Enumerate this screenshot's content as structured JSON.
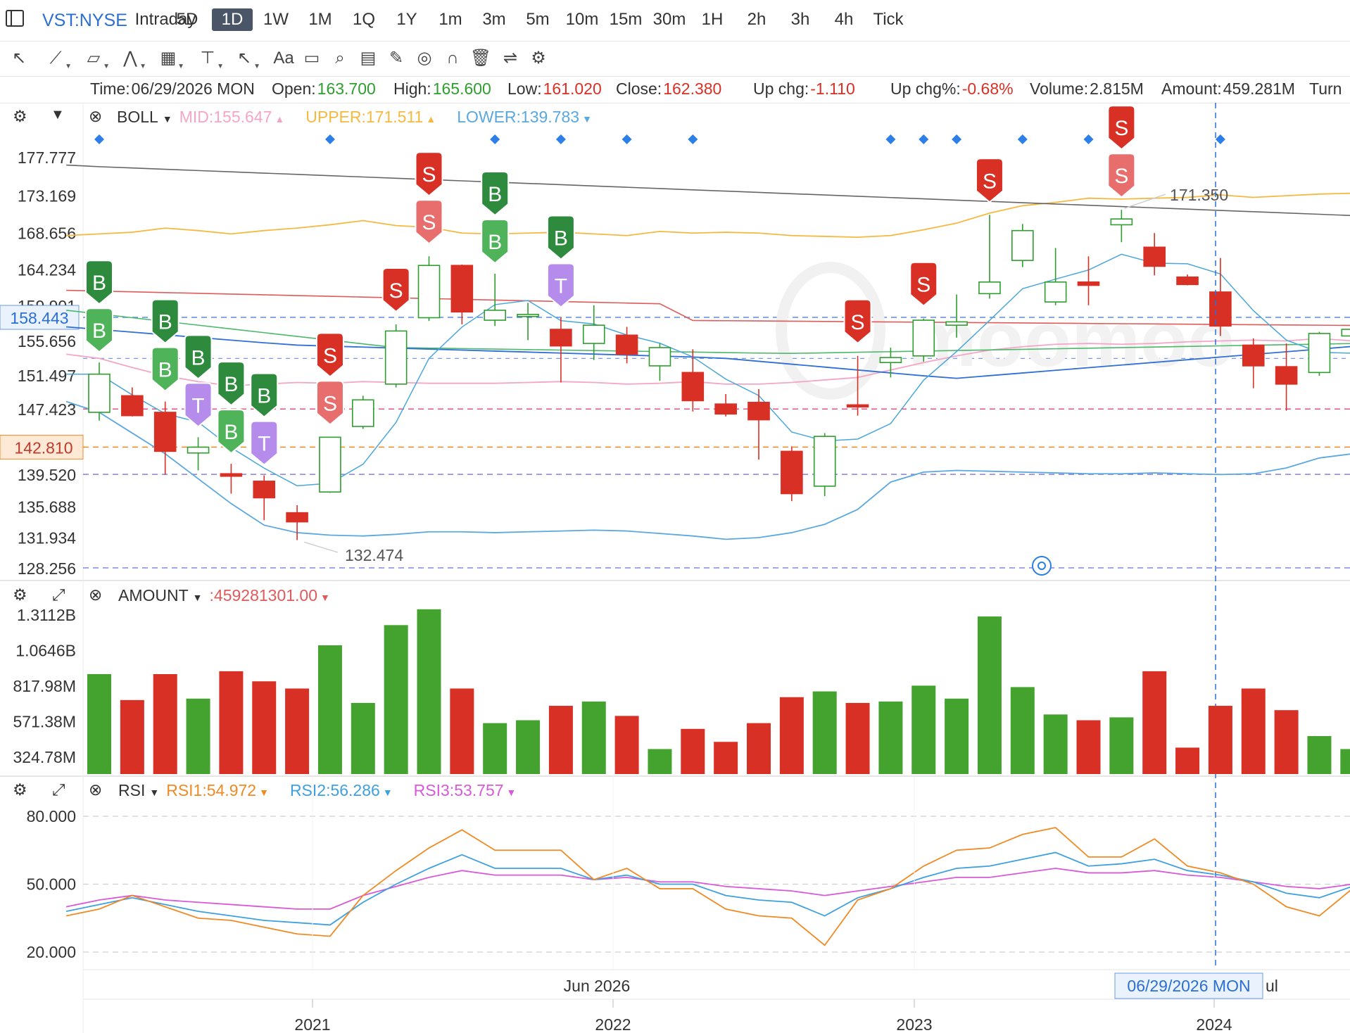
{
  "header": {
    "symbol": "VST:NYSE",
    "periods": [
      "Intraday",
      "5D",
      "1D",
      "1W",
      "1M",
      "1Q",
      "1Y",
      "1m",
      "3m",
      "5m",
      "10m",
      "15m",
      "30m",
      "1H",
      "2h",
      "3h",
      "4h",
      "Tick"
    ],
    "active_period": "1D"
  },
  "toolbar": {
    "tools": [
      {
        "icon": "cursor-icon",
        "glyph": "↖",
        "caret": false
      },
      {
        "icon": "trend-line-icon",
        "glyph": "⟋",
        "caret": true
      },
      {
        "icon": "channel-icon",
        "glyph": "▱",
        "caret": true
      },
      {
        "icon": "wave-icon",
        "glyph": "⋀",
        "caret": true
      },
      {
        "icon": "pattern-icon",
        "glyph": "▦",
        "caret": true
      },
      {
        "icon": "vertical-line-icon",
        "glyph": "⊤",
        "caret": true
      },
      {
        "icon": "arrow-icon",
        "glyph": "↖",
        "caret": true
      },
      {
        "icon": "text-icon",
        "glyph": "Aa",
        "caret": false
      },
      {
        "icon": "comment-icon",
        "glyph": "▭",
        "caret": false
      },
      {
        "icon": "zoom-icon",
        "glyph": "⌕",
        "caret": false
      },
      {
        "icon": "measure-icon",
        "glyph": "▤",
        "caret": false
      },
      {
        "icon": "pen-icon",
        "glyph": "✎",
        "caret": false
      },
      {
        "icon": "hide-icon",
        "glyph": "◎",
        "caret": false
      },
      {
        "icon": "magnet-icon",
        "glyph": "∩",
        "caret": false
      },
      {
        "icon": "trash-icon",
        "glyph": "🗑",
        "caret": false
      },
      {
        "icon": "sync-icon",
        "glyph": "⇌",
        "caret": false
      },
      {
        "icon": "settings-icon",
        "glyph": "⚙",
        "caret": false
      }
    ]
  },
  "info_bar": [
    {
      "label": "Time:",
      "value": "06/29/2026 MON",
      "color": "#333333"
    },
    {
      "label": "Open:",
      "value": "163.700",
      "color": "#2e9e2e"
    },
    {
      "label": "High:",
      "value": "165.600",
      "color": "#2e9e2e"
    },
    {
      "label": "Low:",
      "value": "161.020",
      "color": "#d93025"
    },
    {
      "label": "Close:",
      "value": "162.380",
      "color": "#d93025"
    },
    {
      "label": "Up chg:",
      "value": "-1.110",
      "color": "#d93025"
    },
    {
      "label": "Up chg%:",
      "value": "-0.68%",
      "color": "#d93025"
    },
    {
      "label": "Volume:",
      "value": "2.815M",
      "color": "#333333"
    },
    {
      "label": "Amount:",
      "value": "459.281M",
      "color": "#333333"
    },
    {
      "label": "Turn",
      "value": "",
      "color": "#333333"
    }
  ],
  "panels": {
    "boll": {
      "name": "BOLL",
      "values": [
        {
          "text": "MID:155.647",
          "color": "#f4a6c6"
        },
        {
          "text": "UPPER:171.511",
          "color": "#f5b942"
        },
        {
          "text": "LOWER:139.783",
          "color": "#5aa8e0"
        }
      ]
    },
    "amount": {
      "name": "AMOUNT",
      "values": [
        {
          "text": ":459281301.00",
          "color": "#e05a5a"
        }
      ]
    },
    "rsi": {
      "name": "RSI",
      "values": [
        {
          "text": "RSI1:54.972",
          "color": "#f08a24"
        },
        {
          "text": "RSI2:56.286",
          "color": "#3ea0e0"
        },
        {
          "text": "RSI3:53.757",
          "color": "#d85ad8"
        }
      ]
    }
  },
  "price_axis": {
    "ticks": [
      "177.777",
      "173.169",
      "168.656",
      "164.234",
      "159.901",
      "155.656",
      "151.497",
      "147.423",
      "139.520",
      "135.688",
      "131.934",
      "128.256"
    ],
    "crosshair_price": "158.443",
    "current_price": "142.810"
  },
  "amount_axis": {
    "ticks": [
      "1.3112B",
      "1.0646B",
      "817.98M",
      "571.38M",
      "324.78M"
    ]
  },
  "rsi_axis": {
    "ticks": [
      "80.000",
      "50.000",
      "20.000"
    ]
  },
  "annotations": {
    "high_label": "171.350",
    "low_label": "132.474"
  },
  "time_axis": {
    "inner_labels": [
      "Jun 2026"
    ],
    "crosshair_label": "06/29/2026 MON",
    "crosshair_after": "ul",
    "year_labels": [
      "2021",
      "2022",
      "2023",
      "2024"
    ]
  },
  "colors": {
    "up": "#2e9e2e",
    "down": "#d93025",
    "accent": "#2b6fd6"
  },
  "chart_data": {
    "type": "candlestick",
    "candles": [
      {
        "o": 147,
        "h": 153,
        "l": 146,
        "c": 151.6,
        "amt": 0.9
      },
      {
        "o": 149,
        "h": 150,
        "l": 146.5,
        "c": 146.6,
        "amt": 0.72
      },
      {
        "o": 147,
        "h": 148.3,
        "l": 139.5,
        "c": 142.3,
        "amt": 0.9
      },
      {
        "o": 142.1,
        "h": 144,
        "l": 140,
        "c": 142.8,
        "amt": 0.73
      },
      {
        "o": 139.6,
        "h": 140.8,
        "l": 137.2,
        "c": 139.3,
        "amt": 0.92
      },
      {
        "o": 138.7,
        "h": 139.4,
        "l": 134,
        "c": 136.7,
        "amt": 0.85
      },
      {
        "o": 134.9,
        "h": 135.8,
        "l": 131.6,
        "c": 133.8,
        "amt": 0.8
      },
      {
        "o": 137.4,
        "h": 144,
        "l": 137.3,
        "c": 144,
        "amt": 1.1
      },
      {
        "o": 145.3,
        "h": 149,
        "l": 145,
        "c": 148.5,
        "amt": 0.7
      },
      {
        "o": 150.4,
        "h": 157.6,
        "l": 150,
        "c": 156.8,
        "amt": 1.24
      },
      {
        "o": 158.4,
        "h": 165.8,
        "l": 158,
        "c": 164.7,
        "amt": 1.35
      },
      {
        "o": 164.7,
        "h": 164.8,
        "l": 157.6,
        "c": 159.1,
        "amt": 0.8
      },
      {
        "o": 158.1,
        "h": 163.7,
        "l": 157.4,
        "c": 159.3,
        "amt": 0.56
      },
      {
        "o": 158.8,
        "h": 160.2,
        "l": 155.7,
        "c": 158.8,
        "amt": 0.58
      },
      {
        "o": 157,
        "h": 158.4,
        "l": 150.6,
        "c": 155,
        "amt": 0.68
      },
      {
        "o": 155.3,
        "h": 159.9,
        "l": 153.3,
        "c": 157.5,
        "amt": 0.71
      },
      {
        "o": 156.3,
        "h": 157.3,
        "l": 152.9,
        "c": 154,
        "amt": 0.61
      },
      {
        "o": 152.6,
        "h": 155.3,
        "l": 150.8,
        "c": 154.8,
        "amt": 0.38
      },
      {
        "o": 151.8,
        "h": 154.6,
        "l": 147.1,
        "c": 148.4,
        "amt": 0.52
      },
      {
        "o": 148,
        "h": 149.2,
        "l": 146.5,
        "c": 146.8,
        "amt": 0.43
      },
      {
        "o": 148.2,
        "h": 149.8,
        "l": 141.3,
        "c": 146.1,
        "amt": 0.56
      },
      {
        "o": 142.3,
        "h": 142.9,
        "l": 136.3,
        "c": 137.2,
        "amt": 0.74
      },
      {
        "o": 138.1,
        "h": 144.5,
        "l": 136.9,
        "c": 144.1,
        "amt": 0.78
      },
      {
        "o": 147.9,
        "h": 153.8,
        "l": 146.6,
        "c": 147.7,
        "amt": 0.7
      },
      {
        "o": 153,
        "h": 154.8,
        "l": 151.2,
        "c": 153.6,
        "amt": 0.71
      },
      {
        "o": 153.8,
        "h": 158.3,
        "l": 153.1,
        "c": 158.1,
        "amt": 0.82
      },
      {
        "o": 157.5,
        "h": 161.2,
        "l": 156,
        "c": 157.9,
        "amt": 0.73
      },
      {
        "o": 161.3,
        "h": 170.8,
        "l": 160.7,
        "c": 162.7,
        "amt": 1.3
      },
      {
        "o": 165.3,
        "h": 169.7,
        "l": 164.5,
        "c": 168.9,
        "amt": 0.81
      },
      {
        "o": 160.3,
        "h": 166.8,
        "l": 159.9,
        "c": 162.7,
        "amt": 0.62
      },
      {
        "o": 162.7,
        "h": 165.8,
        "l": 159.9,
        "c": 162.3,
        "amt": 0.58
      },
      {
        "o": 169.6,
        "h": 171.4,
        "l": 167.5,
        "c": 170.3,
        "amt": 0.6
      },
      {
        "o": 166.9,
        "h": 168.6,
        "l": 163.5,
        "c": 164.6,
        "amt": 0.92
      },
      {
        "o": 163.3,
        "h": 163.6,
        "l": 162.3,
        "c": 162.4,
        "amt": 0.39
      },
      {
        "o": 161.5,
        "h": 165.6,
        "l": 156.2,
        "c": 157.4,
        "amt": 0.68
      },
      {
        "o": 155.1,
        "h": 155.9,
        "l": 149.9,
        "c": 152.6,
        "amt": 0.8
      },
      {
        "o": 152.5,
        "h": 155.3,
        "l": 147.2,
        "c": 150.4,
        "amt": 0.65
      },
      {
        "o": 151.8,
        "h": 156.7,
        "l": 151.4,
        "c": 156.5,
        "amt": 0.47
      },
      {
        "o": 156.2,
        "h": 159.1,
        "l": 155.6,
        "c": 157,
        "amt": 0.38
      }
    ],
    "rsi": {
      "rsi1": [
        39,
        45,
        40,
        35,
        34,
        31,
        28,
        27,
        45,
        56,
        66,
        74,
        65,
        65,
        65,
        52,
        57,
        48,
        48,
        39,
        36,
        35,
        23,
        43,
        48,
        58,
        65,
        66,
        72,
        75,
        62,
        62,
        70,
        58,
        55,
        50,
        40,
        36,
        48,
        47
      ],
      "rsi2": [
        41,
        44,
        41,
        38,
        36,
        34,
        33,
        32,
        42,
        50,
        57,
        63,
        57,
        57,
        57,
        52,
        54,
        50,
        50,
        45,
        43,
        42,
        36,
        44,
        48,
        53,
        57,
        58,
        61,
        64,
        58,
        59,
        61,
        56,
        54,
        51,
        46,
        44,
        49,
        48
      ],
      "rsi3": [
        43,
        45,
        43,
        42,
        41,
        40,
        39,
        39,
        45,
        49,
        53,
        56,
        54,
        54,
        54,
        52,
        53,
        51,
        51,
        49,
        48,
        47,
        45,
        47,
        49,
        51,
        53,
        53,
        55,
        57,
        55,
        55,
        56,
        54,
        53,
        51,
        49,
        48,
        50,
        50
      ]
    },
    "signals": [
      {
        "i": 0,
        "labels": [
          "B",
          "B"
        ],
        "color": "green"
      },
      {
        "i": 2,
        "labels": [
          "B",
          "B"
        ],
        "color": "green"
      },
      {
        "i": 3,
        "labels": [
          "B",
          "T"
        ],
        "color": "purple"
      },
      {
        "i": 4,
        "labels": [
          "B",
          "B"
        ],
        "color": "green"
      },
      {
        "i": 5,
        "labels": [
          "B",
          "T"
        ],
        "color": "purple"
      },
      {
        "i": 7,
        "labels": [
          "S",
          "S"
        ],
        "color": "red"
      },
      {
        "i": 9,
        "labels": [
          "S"
        ],
        "color": "red"
      },
      {
        "i": 10,
        "labels": [
          "S",
          "S"
        ],
        "color": "red"
      },
      {
        "i": 12,
        "labels": [
          "B",
          "B"
        ],
        "color": "green"
      },
      {
        "i": 14,
        "labels": [
          "B",
          "T"
        ],
        "color": "purple"
      },
      {
        "i": 23,
        "labels": [
          "S"
        ],
        "color": "red"
      },
      {
        "i": 25,
        "labels": [
          "S"
        ],
        "color": "red"
      },
      {
        "i": 27,
        "labels": [
          "S"
        ],
        "color": "red"
      },
      {
        "i": 31,
        "labels": [
          "S",
          "S"
        ],
        "color": "red"
      }
    ],
    "diamonds": [
      0,
      7,
      12,
      14,
      16,
      18,
      24,
      25,
      26,
      28,
      30,
      34
    ]
  }
}
